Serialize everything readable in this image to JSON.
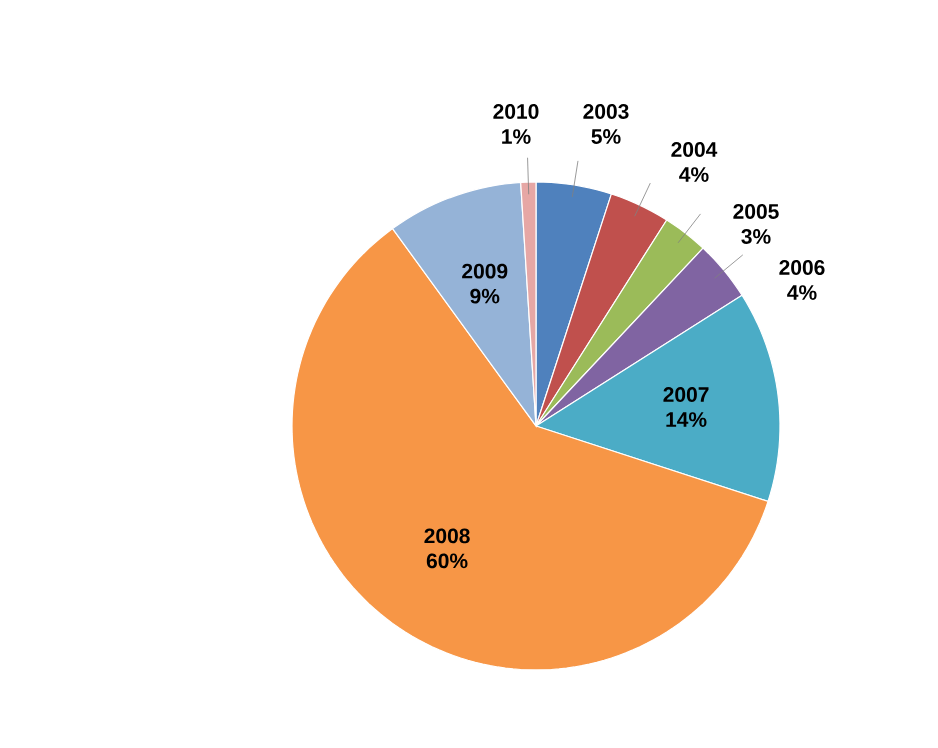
{
  "chart_data": {
    "type": "pie",
    "categories": [
      "2003",
      "2004",
      "2005",
      "2006",
      "2007",
      "2008",
      "2009",
      "2010"
    ],
    "values": [
      5,
      4,
      3,
      4,
      14,
      60,
      9,
      1
    ],
    "value_labels": [
      "5%",
      "4%",
      "3%",
      "4%",
      "14%",
      "60%",
      "9%",
      "1%"
    ],
    "colors": [
      "#4f81bd",
      "#c0504d",
      "#9bbb59",
      "#8064a2",
      "#4bacc6",
      "#f79646",
      "#95b3d7",
      "#e6a7a5"
    ]
  }
}
